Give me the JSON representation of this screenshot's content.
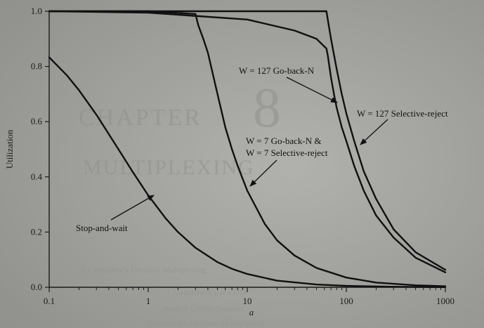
{
  "chart_data": {
    "type": "line",
    "title": "",
    "xlabel": "a",
    "ylabel": "Utilization",
    "x_scale": "log",
    "xlim": [
      0.1,
      1000
    ],
    "ylim": [
      0,
      1
    ],
    "grid": false,
    "x_ticks": [
      {
        "value": 0.1,
        "label": "0.1"
      },
      {
        "value": 1,
        "label": "1"
      },
      {
        "value": 10,
        "label": "10"
      },
      {
        "value": 100,
        "label": "100"
      },
      {
        "value": 1000,
        "label": "1000"
      }
    ],
    "y_ticks": [
      {
        "value": 0.0,
        "label": "0.0"
      },
      {
        "value": 0.2,
        "label": "0.2"
      },
      {
        "value": 0.4,
        "label": "0.4"
      },
      {
        "value": 0.6,
        "label": "0.6"
      },
      {
        "value": 0.8,
        "label": "0.8"
      },
      {
        "value": 1.0,
        "label": "1.0"
      }
    ],
    "series": [
      {
        "name": "Stop-and-wait",
        "points": [
          [
            0.1,
            0.833
          ],
          [
            0.15,
            0.769
          ],
          [
            0.2,
            0.714
          ],
          [
            0.3,
            0.625
          ],
          [
            0.5,
            0.5
          ],
          [
            0.7,
            0.417
          ],
          [
            1,
            0.333
          ],
          [
            1.5,
            0.25
          ],
          [
            2,
            0.2
          ],
          [
            3,
            0.143
          ],
          [
            5,
            0.091
          ],
          [
            7,
            0.067
          ],
          [
            10,
            0.048
          ],
          [
            20,
            0.024
          ],
          [
            50,
            0.0099
          ],
          [
            100,
            0.005
          ],
          [
            300,
            0.0017
          ],
          [
            1000,
            0.0005
          ]
        ]
      },
      {
        "name": "W = 7 Go-back-N & W = 7 Selective-reject",
        "points": [
          [
            0.1,
            1.0
          ],
          [
            1,
            1.0
          ],
          [
            3,
            0.99
          ],
          [
            3.2,
            0.95
          ],
          [
            3.6,
            0.9
          ],
          [
            4,
            0.85
          ],
          [
            5,
            0.7
          ],
          [
            6,
            0.58
          ],
          [
            7,
            0.5
          ],
          [
            8,
            0.44
          ],
          [
            10,
            0.35
          ],
          [
            15,
            0.23
          ],
          [
            20,
            0.17
          ],
          [
            30,
            0.115
          ],
          [
            50,
            0.07
          ],
          [
            100,
            0.035
          ],
          [
            200,
            0.017
          ],
          [
            500,
            0.007
          ],
          [
            1000,
            0.0035
          ]
        ]
      },
      {
        "name": "W = 127 Go-back-N",
        "points": [
          [
            0.1,
            1.0
          ],
          [
            1,
            0.995
          ],
          [
            10,
            0.97
          ],
          [
            30,
            0.93
          ],
          [
            50,
            0.9
          ],
          [
            63,
            0.865
          ],
          [
            65,
            0.84
          ],
          [
            70,
            0.76
          ],
          [
            75,
            0.7
          ],
          [
            80,
            0.65
          ],
          [
            90,
            0.58
          ],
          [
            100,
            0.53
          ],
          [
            120,
            0.44
          ],
          [
            150,
            0.35
          ],
          [
            200,
            0.26
          ],
          [
            300,
            0.18
          ],
          [
            500,
            0.107
          ],
          [
            1000,
            0.054
          ]
        ]
      },
      {
        "name": "W = 127 Selective-reject",
        "points": [
          [
            0.1,
            1.0
          ],
          [
            63,
            1.0
          ],
          [
            65,
            0.97
          ],
          [
            70,
            0.9
          ],
          [
            80,
            0.79
          ],
          [
            90,
            0.7
          ],
          [
            100,
            0.63
          ],
          [
            120,
            0.53
          ],
          [
            150,
            0.42
          ],
          [
            200,
            0.32
          ],
          [
            300,
            0.21
          ],
          [
            500,
            0.127
          ],
          [
            1000,
            0.063
          ]
        ]
      }
    ],
    "annotations": [
      {
        "text": "W = 127 Go-back-N"
      },
      {
        "text": "W = 127 Selective-reject"
      },
      {
        "text_lines": [
          "W = 7 Go-back-N &",
          "W = 7 Selective-reject"
        ]
      },
      {
        "text": "Stop-and-wait"
      }
    ]
  },
  "background_text": {
    "chapter_word": "CHAPTER",
    "chapter_number": "8",
    "heading": "MULTIPLEXING",
    "line1": "8.1   Frequency Division Multiplexing",
    "line2": "Characteristics of FDM",
    "line3": "Analog Carrier Systems",
    "line4": "Wavelength Division Multiplexing"
  }
}
